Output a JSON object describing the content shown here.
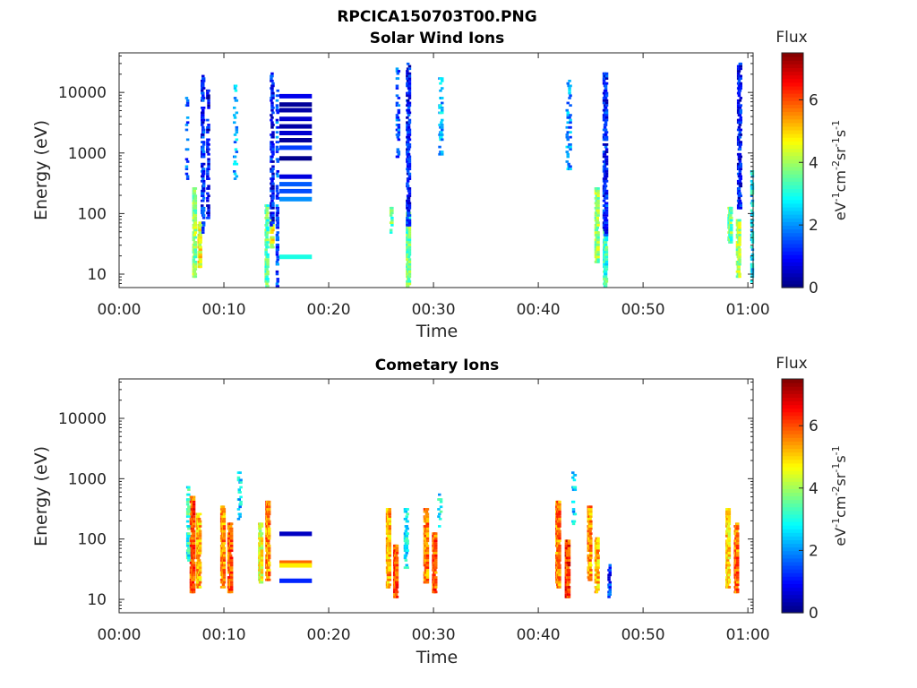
{
  "figure": {
    "title": "RPCICA150703T00.PNG"
  },
  "colormap": {
    "name": "jet",
    "colors": [
      "#00007f",
      "#0000ff",
      "#007fff",
      "#00ffff",
      "#7fff7f",
      "#ffff00",
      "#ff7f00",
      "#ff0000",
      "#7f0000"
    ]
  },
  "chart_data": [
    {
      "type": "heatmap",
      "title": "Solar Wind Ions",
      "xlabel": "Time",
      "ylabel": "Energy (eV)",
      "x_ticks": [
        "00:00",
        "00:10",
        "00:20",
        "00:30",
        "00:40",
        "00:50",
        "01:00"
      ],
      "x_tick_minutes": [
        0,
        10,
        20,
        30,
        40,
        50,
        60
      ],
      "xlim_minutes": [
        0,
        60.5
      ],
      "y_scale": "log",
      "y_ticks": [
        "10",
        "100",
        "1000",
        "10000"
      ],
      "y_tick_values": [
        10,
        100,
        1000,
        10000
      ],
      "ylim": [
        6,
        45000
      ],
      "colorbar": {
        "header": "Flux",
        "label": "eV-1cm-2sr-1s-1",
        "ticks": [
          "0",
          "2",
          "4",
          "6"
        ],
        "tick_values": [
          0,
          2,
          4,
          6
        ],
        "range": [
          0,
          7.5
        ]
      },
      "bursts": [
        {
          "t": 7.1,
          "w": 0.25,
          "e_lo": 8,
          "e_hi": 250,
          "c": 3.9,
          "density": 0.85
        },
        {
          "t": 7.6,
          "w": 0.25,
          "e_lo": 12,
          "e_hi": 70,
          "c": 4.6,
          "density": 0.9
        },
        {
          "t": 7.9,
          "w": 0.25,
          "e_lo": 40,
          "e_hi": 21000,
          "c": 1.2,
          "density": 0.55
        },
        {
          "t": 8.4,
          "w": 0.2,
          "e_lo": 80,
          "e_hi": 12000,
          "c": 0.9,
          "density": 0.5
        },
        {
          "t": 6.4,
          "w": 0.2,
          "e_lo": 350,
          "e_hi": 9000,
          "c": 1.8,
          "density": 0.25
        },
        {
          "t": 11.0,
          "w": 0.3,
          "e_lo": 300,
          "e_hi": 16000,
          "c": 2.2,
          "density": 0.2
        },
        {
          "t": 14.0,
          "w": 0.25,
          "e_lo": 6,
          "e_hi": 140,
          "c": 3.5,
          "density": 0.75
        },
        {
          "t": 14.5,
          "w": 0.25,
          "e_lo": 25,
          "e_hi": 80,
          "c": 4.4,
          "density": 0.9
        },
        {
          "t": 14.5,
          "w": 0.25,
          "e_lo": 60,
          "e_hi": 20000,
          "c": 1.0,
          "density": 0.55
        },
        {
          "t": 15.0,
          "w": 0.15,
          "e_lo": 6,
          "e_hi": 12000,
          "c": 1.5,
          "density": 0.5
        },
        {
          "t": 25.9,
          "w": 0.2,
          "e_lo": 40,
          "e_hi": 120,
          "c": 3.6,
          "density": 0.7
        },
        {
          "t": 26.5,
          "w": 0.25,
          "e_lo": 700,
          "e_hi": 25000,
          "c": 1.6,
          "density": 0.3
        },
        {
          "t": 27.5,
          "w": 0.3,
          "e_lo": 6,
          "e_hi": 100,
          "c": 3.6,
          "density": 0.85
        },
        {
          "t": 27.5,
          "w": 0.3,
          "e_lo": 60,
          "e_hi": 30000,
          "c": 1.0,
          "density": 0.6
        },
        {
          "t": 30.6,
          "w": 0.3,
          "e_lo": 800,
          "e_hi": 17000,
          "c": 2.3,
          "density": 0.3
        },
        {
          "t": 42.8,
          "w": 0.4,
          "e_lo": 500,
          "e_hi": 15000,
          "c": 2.0,
          "density": 0.25
        },
        {
          "t": 45.5,
          "w": 0.3,
          "e_lo": 15,
          "e_hi": 250,
          "c": 3.9,
          "density": 0.8
        },
        {
          "t": 46.3,
          "w": 0.3,
          "e_lo": 6,
          "e_hi": 60,
          "c": 3.2,
          "density": 0.8
        },
        {
          "t": 46.3,
          "w": 0.35,
          "e_lo": 40,
          "e_hi": 20000,
          "c": 1.1,
          "density": 0.6
        },
        {
          "t": 58.2,
          "w": 0.3,
          "e_lo": 30,
          "e_hi": 120,
          "c": 3.6,
          "density": 0.75
        },
        {
          "t": 59.0,
          "w": 0.3,
          "e_lo": 8,
          "e_hi": 80,
          "c": 4.0,
          "density": 0.85
        },
        {
          "t": 59.1,
          "w": 0.3,
          "e_lo": 100,
          "e_hi": 30000,
          "c": 1.0,
          "density": 0.55
        },
        {
          "t": 60.3,
          "w": 0.15,
          "e_lo": 6,
          "e_hi": 500,
          "c": 2.6,
          "density": 0.6
        }
      ],
      "stripes": [
        {
          "t0": 15.3,
          "t1": 18.4,
          "e": 8500,
          "c": 0.8
        },
        {
          "t0": 15.3,
          "t1": 18.4,
          "e": 6200,
          "c": 0.2
        },
        {
          "t0": 15.3,
          "t1": 18.4,
          "e": 5000,
          "c": 0.3
        },
        {
          "t0": 15.3,
          "t1": 18.4,
          "e": 3600,
          "c": 0.6
        },
        {
          "t0": 15.3,
          "t1": 18.4,
          "e": 2700,
          "c": 0.3
        },
        {
          "t0": 15.3,
          "t1": 18.4,
          "e": 2100,
          "c": 0.6
        },
        {
          "t0": 15.3,
          "t1": 18.4,
          "e": 1600,
          "c": 0.2
        },
        {
          "t0": 15.3,
          "t1": 18.4,
          "e": 1200,
          "c": 1.4
        },
        {
          "t0": 15.3,
          "t1": 18.4,
          "e": 800,
          "c": 0.1
        },
        {
          "t0": 15.3,
          "t1": 18.4,
          "e": 400,
          "c": 0.7
        },
        {
          "t0": 15.3,
          "t1": 18.4,
          "e": 300,
          "c": 1.6
        },
        {
          "t0": 15.3,
          "t1": 18.4,
          "e": 230,
          "c": 1.5
        },
        {
          "t0": 15.3,
          "t1": 18.4,
          "e": 170,
          "c": 2.0
        },
        {
          "t0": 15.3,
          "t1": 18.4,
          "e": 19,
          "c": 3.0
        }
      ]
    },
    {
      "type": "heatmap",
      "title": "Cometary Ions",
      "xlabel": "Time",
      "ylabel": "Energy (eV)",
      "x_ticks": [
        "00:00",
        "00:10",
        "00:20",
        "00:30",
        "00:40",
        "00:50",
        "01:00"
      ],
      "x_tick_minutes": [
        0,
        10,
        20,
        30,
        40,
        50,
        60
      ],
      "xlim_minutes": [
        0,
        60.5
      ],
      "y_scale": "log",
      "y_ticks": [
        "10",
        "100",
        "1000",
        "10000"
      ],
      "y_tick_values": [
        10,
        100,
        1000,
        10000
      ],
      "ylim": [
        6,
        45000
      ],
      "colorbar": {
        "header": "Flux",
        "label": "eV-1cm-2sr-1s-1",
        "ticks": [
          "0",
          "2",
          "4",
          "6"
        ],
        "tick_values": [
          0,
          2,
          4,
          6
        ],
        "range": [
          0,
          7.5
        ]
      },
      "bursts": [
        {
          "t": 6.9,
          "w": 0.35,
          "e_lo": 12,
          "e_hi": 500,
          "c": 6.0,
          "density": 0.95
        },
        {
          "t": 7.5,
          "w": 0.35,
          "e_lo": 15,
          "e_hi": 250,
          "c": 5.2,
          "density": 0.85
        },
        {
          "t": 6.5,
          "w": 0.2,
          "e_lo": 40,
          "e_hi": 700,
          "c": 3.0,
          "density": 0.5
        },
        {
          "t": 9.8,
          "w": 0.3,
          "e_lo": 15,
          "e_hi": 350,
          "c": 5.5,
          "density": 0.9
        },
        {
          "t": 10.5,
          "w": 0.35,
          "e_lo": 12,
          "e_hi": 180,
          "c": 5.8,
          "density": 0.9
        },
        {
          "t": 11.4,
          "w": 0.3,
          "e_lo": 200,
          "e_hi": 1200,
          "c": 2.5,
          "density": 0.25
        },
        {
          "t": 13.4,
          "w": 0.3,
          "e_lo": 18,
          "e_hi": 180,
          "c": 4.5,
          "density": 0.85
        },
        {
          "t": 14.1,
          "w": 0.3,
          "e_lo": 20,
          "e_hi": 400,
          "c": 5.5,
          "density": 0.85
        },
        {
          "t": 25.6,
          "w": 0.3,
          "e_lo": 15,
          "e_hi": 300,
          "c": 5.3,
          "density": 0.85
        },
        {
          "t": 26.3,
          "w": 0.3,
          "e_lo": 10,
          "e_hi": 80,
          "c": 6.0,
          "density": 0.9
        },
        {
          "t": 27.3,
          "w": 0.3,
          "e_lo": 30,
          "e_hi": 300,
          "c": 2.8,
          "density": 0.45
        },
        {
          "t": 29.2,
          "w": 0.35,
          "e_lo": 18,
          "e_hi": 300,
          "c": 5.6,
          "density": 0.9
        },
        {
          "t": 30.0,
          "w": 0.3,
          "e_lo": 12,
          "e_hi": 120,
          "c": 5.9,
          "density": 0.9
        },
        {
          "t": 30.5,
          "w": 0.3,
          "e_lo": 150,
          "e_hi": 600,
          "c": 2.8,
          "density": 0.3
        },
        {
          "t": 41.8,
          "w": 0.35,
          "e_lo": 15,
          "e_hi": 400,
          "c": 5.6,
          "density": 0.9
        },
        {
          "t": 42.7,
          "w": 0.35,
          "e_lo": 10,
          "e_hi": 90,
          "c": 6.2,
          "density": 0.9
        },
        {
          "t": 43.3,
          "w": 0.3,
          "e_lo": 150,
          "e_hi": 1200,
          "c": 2.5,
          "density": 0.25
        },
        {
          "t": 44.8,
          "w": 0.3,
          "e_lo": 20,
          "e_hi": 350,
          "c": 5.4,
          "density": 0.85
        },
        {
          "t": 45.5,
          "w": 0.3,
          "e_lo": 12,
          "e_hi": 100,
          "c": 5.2,
          "density": 0.85
        },
        {
          "t": 46.7,
          "w": 0.2,
          "e_lo": 10,
          "e_hi": 40,
          "c": 1.3,
          "density": 0.6
        },
        {
          "t": 58.0,
          "w": 0.3,
          "e_lo": 15,
          "e_hi": 300,
          "c": 5.0,
          "density": 0.85
        },
        {
          "t": 58.8,
          "w": 0.3,
          "e_lo": 12,
          "e_hi": 180,
          "c": 5.7,
          "density": 0.9
        }
      ],
      "stripes": [
        {
          "t0": 15.3,
          "t1": 18.4,
          "e": 120,
          "c": 0.5
        },
        {
          "t0": 15.3,
          "t1": 18.4,
          "e": 40,
          "c": 5.8
        },
        {
          "t0": 15.3,
          "t1": 18.4,
          "e": 36,
          "c": 4.8
        },
        {
          "t0": 15.3,
          "t1": 18.4,
          "e": 20,
          "c": 1.2
        }
      ]
    }
  ]
}
